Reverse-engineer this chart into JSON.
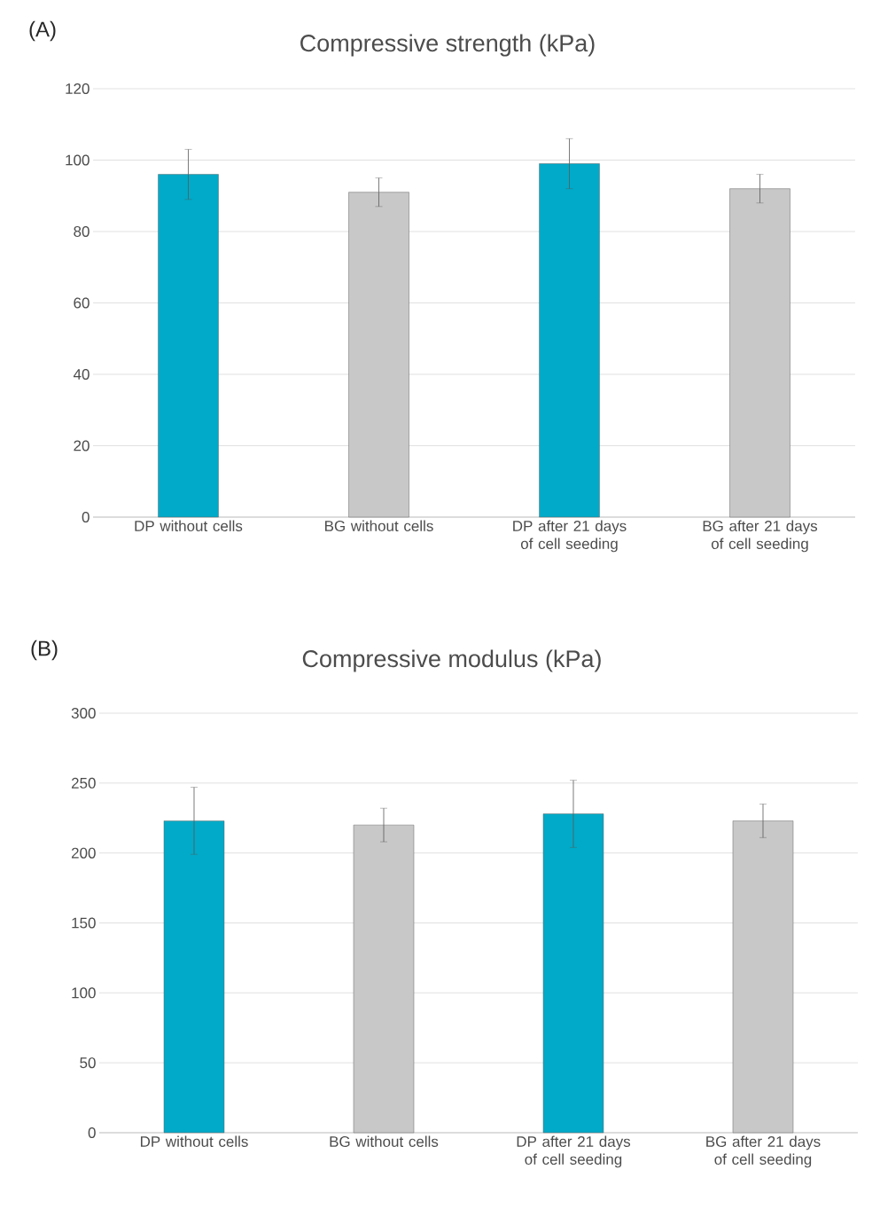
{
  "chart_data": [
    {
      "type": "bar",
      "title": "Compressive strength (kPa)",
      "annotations": [
        "(A)"
      ],
      "categories": [
        "DP without cells",
        "BG without cells",
        "DP after 21 days of cell seeding",
        "BG after 21 days of cell seeding"
      ],
      "values": [
        96,
        91,
        99,
        92
      ],
      "errors": [
        7,
        4,
        7,
        4
      ],
      "colors": [
        "#00aac8",
        "#c8c8c8",
        "#00aac8",
        "#c8c8c8"
      ],
      "ylim": [
        0,
        120
      ],
      "yticks": [
        0,
        20,
        40,
        60,
        80,
        100,
        120
      ],
      "grid": "y"
    },
    {
      "type": "bar",
      "title": "Compressive modulus (kPa)",
      "annotations": [
        "(B)"
      ],
      "categories": [
        "DP without cells",
        "BG without cells",
        "DP after 21 days of cell seeding",
        "BG after 21 days of cell seeding"
      ],
      "values": [
        223,
        220,
        228,
        223
      ],
      "errors": [
        24,
        12,
        24,
        12
      ],
      "colors": [
        "#00aac8",
        "#c8c8c8",
        "#00aac8",
        "#c8c8c8"
      ],
      "ylim": [
        0,
        300
      ],
      "yticks": [
        0,
        50,
        100,
        150,
        200,
        250,
        300
      ],
      "grid": "y"
    }
  ]
}
